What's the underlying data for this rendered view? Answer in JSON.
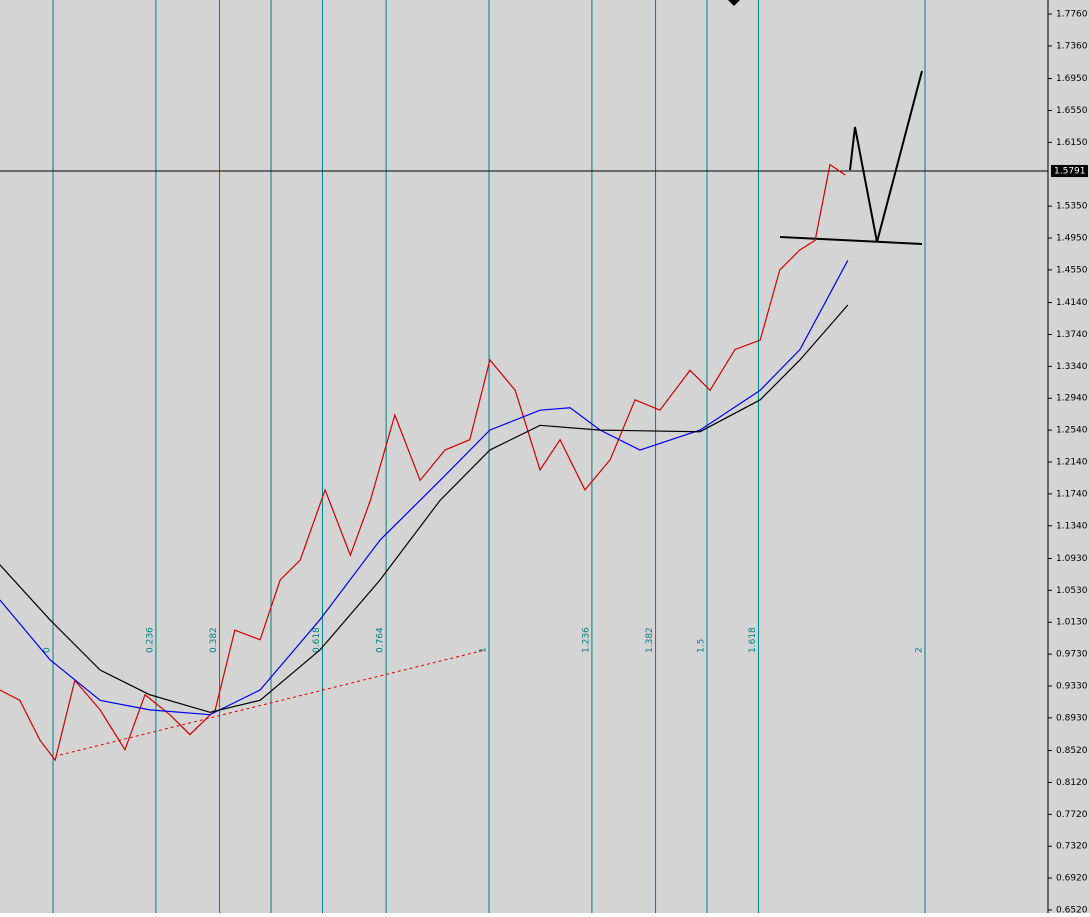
{
  "chart_data": {
    "type": "line",
    "background": "#d4d4d4",
    "xlim": [
      -0.1216,
      2.2821
    ],
    "ylim": [
      0.6482,
      1.7936
    ],
    "xticks": [
      0,
      0.236,
      0.382,
      {
        "value": 0.5,
        "label": null
      },
      0.618,
      0.764,
      1,
      1.236,
      1.382,
      1.5,
      1.618,
      2
    ],
    "yticks": [
      {
        "value": 1.776,
        "label": "1.7760"
      },
      {
        "value": 1.736,
        "label": "1.7360"
      },
      {
        "value": 1.695,
        "label": "1.6950"
      },
      {
        "value": 1.655,
        "label": "1.6550"
      },
      {
        "value": 1.615,
        "label": "1.6150"
      },
      {
        "value": 1.535,
        "label": "1.5350"
      },
      {
        "value": 1.495,
        "label": "1.4950"
      },
      {
        "value": 1.455,
        "label": "1.4550"
      },
      {
        "value": 1.414,
        "label": "1.4140"
      },
      {
        "value": 1.374,
        "label": "1.3740"
      },
      {
        "value": 1.334,
        "label": "1.3340"
      },
      {
        "value": 1.294,
        "label": "1.2940"
      },
      {
        "value": 1.254,
        "label": "1.2540"
      },
      {
        "value": 1.214,
        "label": "1.2140"
      },
      {
        "value": 1.174,
        "label": "1.1740"
      },
      {
        "value": 1.134,
        "label": "1.1340"
      },
      {
        "value": 1.093,
        "label": "1.0930"
      },
      {
        "value": 1.053,
        "label": "1.0530"
      },
      {
        "value": 1.013,
        "label": "1.0130"
      },
      {
        "value": 0.973,
        "label": "0.9730"
      },
      {
        "value": 0.933,
        "label": "0.9330"
      },
      {
        "value": 0.893,
        "label": "0.8930"
      },
      {
        "value": 0.852,
        "label": "0.8520"
      },
      {
        "value": 0.812,
        "label": "0.8120"
      },
      {
        "value": 0.772,
        "label": "0.7720"
      },
      {
        "value": 0.732,
        "label": "0.7320"
      },
      {
        "value": 0.692,
        "label": "0.6920"
      },
      {
        "value": 0.652,
        "label": "0.6520"
      }
    ],
    "current_price": 1.5791,
    "series": [
      {
        "color": "#d00000",
        "x": [
          -0.122,
          -0.076,
          -0.03,
          0.005,
          0.05,
          0.108,
          0.165,
          0.211,
          0.268,
          0.314,
          0.372,
          0.417,
          0.475,
          0.521,
          0.567,
          0.624,
          0.682,
          0.728,
          0.784,
          0.842,
          0.899,
          0.956,
          1.002,
          1.06,
          1.117,
          1.163,
          1.22,
          1.278,
          1.335,
          1.392,
          1.461,
          1.507,
          1.564,
          1.622,
          1.667,
          1.713,
          1.748,
          1.782,
          1.817
        ],
        "values": [
          0.928,
          0.915,
          0.865,
          0.84,
          0.94,
          0.903,
          0.853,
          0.922,
          0.897,
          0.872,
          0.903,
          1.003,
          0.991,
          1.066,
          1.091,
          1.179,
          1.097,
          1.166,
          1.273,
          1.191,
          1.229,
          1.242,
          1.342,
          1.304,
          1.204,
          1.242,
          1.179,
          1.217,
          1.292,
          1.279,
          1.329,
          1.304,
          1.355,
          1.367,
          1.455,
          1.48,
          1.492,
          1.587,
          1.574
        ]
      },
      {
        "color": "#0000ee",
        "x": [
          -0.122,
          -0.007,
          0.108,
          0.222,
          0.36,
          0.475,
          0.612,
          0.75,
          0.888,
          1.002,
          1.117,
          1.186,
          1.255,
          1.346,
          1.484,
          1.622,
          1.713,
          1.823
        ],
        "values": [
          1.041,
          0.966,
          0.915,
          0.903,
          0.897,
          0.928,
          1.016,
          1.116,
          1.191,
          1.254,
          1.279,
          1.282,
          1.254,
          1.229,
          1.254,
          1.304,
          1.355,
          1.467
        ]
      },
      {
        "color": "#000000",
        "x": [
          -0.122,
          -0.007,
          0.108,
          0.222,
          0.36,
          0.475,
          0.612,
          0.75,
          0.888,
          1.002,
          1.117,
          1.255,
          1.484,
          1.622,
          1.713,
          1.823
        ],
        "values": [
          1.085,
          1.016,
          0.953,
          0.922,
          0.9,
          0.915,
          0.978,
          1.066,
          1.166,
          1.229,
          1.26,
          1.254,
          1.252,
          1.292,
          1.342,
          1.411
        ]
      }
    ]
  }
}
